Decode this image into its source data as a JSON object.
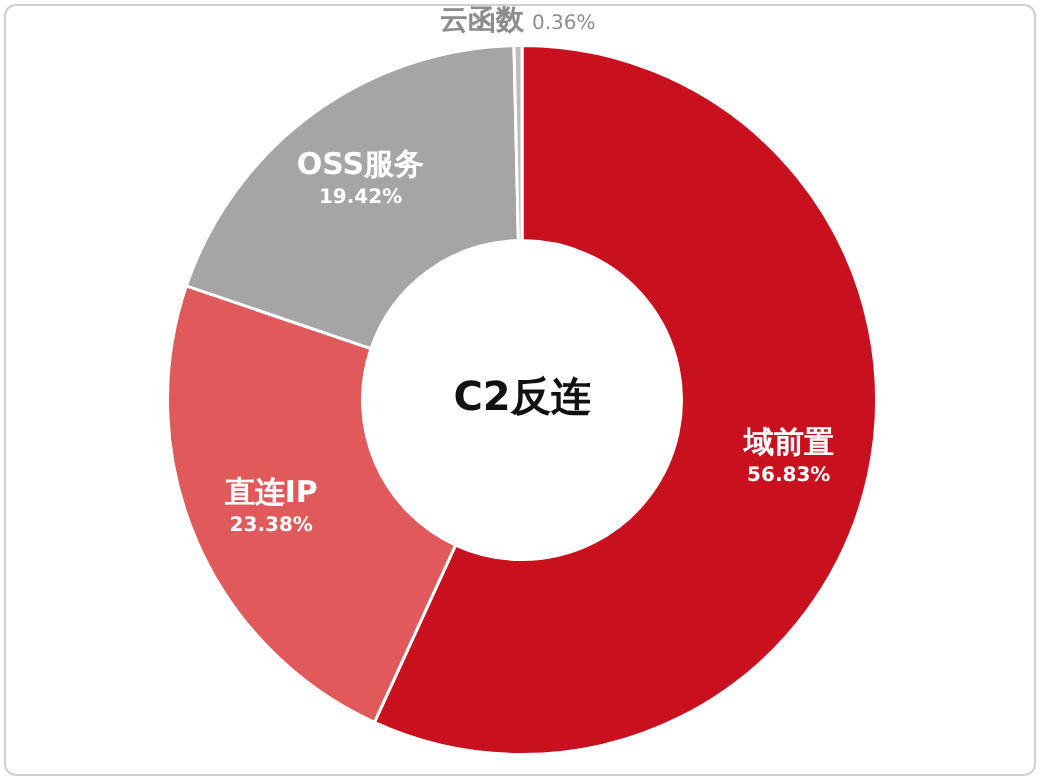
{
  "chart_data": {
    "type": "donut",
    "title": "C2反连",
    "categories": [
      "域前置",
      "直连IP",
      "OSS服务",
      "云函数"
    ],
    "values": [
      56.83,
      23.38,
      19.42,
      0.36
    ],
    "colors": [
      "#c8101e",
      "#e05a5c",
      "#a5a5a5",
      "#bdbdbd"
    ],
    "value_labels": [
      "56.83%",
      "23.38%",
      "19.42%",
      "0.36%"
    ],
    "legend": false
  }
}
